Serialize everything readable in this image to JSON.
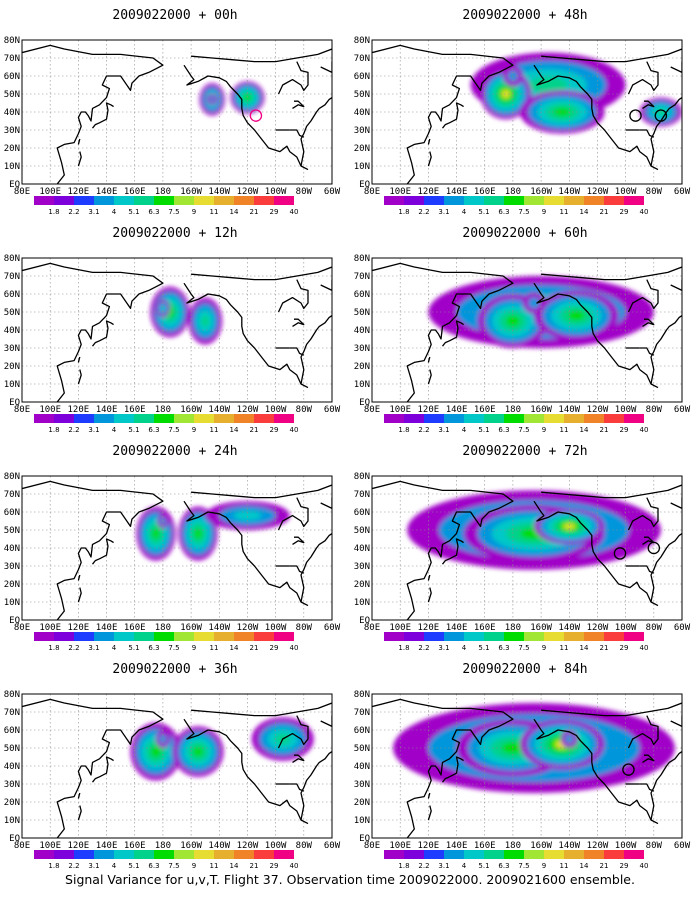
{
  "figure": {
    "footer": "Signal Variance for u,v,T. Flight 37. Observation time 2009022000. 2009021600 ensemble."
  },
  "axes": {
    "lon_labels": [
      "80E",
      "100E",
      "120E",
      "140E",
      "160E",
      "180",
      "160W",
      "140W",
      "120W",
      "100W",
      "80W",
      "60W"
    ],
    "lat_labels": [
      "80N",
      "70N",
      "60N",
      "50N",
      "40N",
      "30N",
      "20N",
      "10N",
      "EQ"
    ],
    "lon_range": [
      80,
      300
    ],
    "lat_range": [
      0,
      80
    ]
  },
  "colorbar": {
    "labels": [
      "1.8",
      "2.2",
      "3.1",
      "4",
      "5.1",
      "6.3",
      "7.5",
      "9",
      "11",
      "14",
      "21",
      "29",
      "40"
    ],
    "colors": [
      "#a000c8",
      "#7d00dc",
      "#1e3cff",
      "#0096dc",
      "#00c8c8",
      "#00d28c",
      "#00dc00",
      "#a0e632",
      "#e6dc32",
      "#e6af2d",
      "#f08228",
      "#fa3c3c",
      "#f00082"
    ]
  },
  "panels": [
    {
      "id": "p00",
      "title": "2009022000 + 00h",
      "col": 0,
      "row": 0,
      "blobs": [
        [
          215,
          47,
          9,
          9,
          3
        ],
        [
          240,
          48,
          12,
          9,
          4
        ],
        [
          215,
          47,
          4,
          3,
          1
        ]
      ],
      "circles": [
        [
          246,
          38,
          4,
          "#f00082"
        ]
      ]
    },
    {
      "id": "p12",
      "title": "2009022000 + 12h",
      "col": 0,
      "row": 1,
      "blobs": [
        [
          185,
          50,
          14,
          14,
          4
        ],
        [
          210,
          45,
          12,
          13,
          3
        ],
        [
          180,
          52,
          5,
          5,
          2
        ]
      ],
      "circles": []
    },
    {
      "id": "p24",
      "title": "2009022000 + 24h",
      "col": 0,
      "row": 2,
      "blobs": [
        [
          175,
          48,
          14,
          15,
          4
        ],
        [
          205,
          48,
          14,
          15,
          4
        ],
        [
          240,
          58,
          30,
          8,
          2
        ],
        [
          180,
          55,
          4,
          4,
          1
        ]
      ],
      "circles": []
    },
    {
      "id": "p36",
      "title": "2009022000 + 36h",
      "col": 0,
      "row": 3,
      "blobs": [
        [
          175,
          48,
          18,
          16,
          4
        ],
        [
          205,
          48,
          18,
          14,
          4
        ],
        [
          265,
          55,
          22,
          12,
          3
        ],
        [
          180,
          55,
          5,
          5,
          1
        ]
      ],
      "circles": []
    },
    {
      "id": "p48",
      "title": "2009022000 + 48h",
      "col": 1,
      "row": 0,
      "blobs": [
        [
          205,
          55,
          55,
          18,
          3
        ],
        [
          175,
          50,
          18,
          14,
          5
        ],
        [
          215,
          40,
          30,
          12,
          4
        ],
        [
          285,
          40,
          15,
          8,
          3
        ],
        [
          180,
          60,
          7,
          6,
          1
        ]
      ],
      "circles": [
        [
          267,
          38,
          4,
          "#000000"
        ],
        [
          285,
          38,
          4,
          "#000000"
        ]
      ]
    },
    {
      "id": "p60",
      "title": "2009022000 + 60h",
      "col": 1,
      "row": 1,
      "blobs": [
        [
          200,
          50,
          80,
          20,
          3
        ],
        [
          180,
          45,
          25,
          15,
          4
        ],
        [
          225,
          48,
          30,
          14,
          4
        ],
        [
          195,
          55,
          8,
          6,
          1
        ]
      ],
      "circles": []
    },
    {
      "id": "p72",
      "title": "2009022000 + 72h",
      "col": 1,
      "row": 2,
      "blobs": [
        [
          195,
          50,
          90,
          22,
          3
        ],
        [
          195,
          48,
          50,
          16,
          4
        ],
        [
          220,
          52,
          25,
          10,
          5
        ]
      ],
      "circles": [
        [
          256,
          37,
          4,
          "#000000"
        ],
        [
          280,
          40,
          4,
          "#000000"
        ]
      ]
    },
    {
      "id": "p84",
      "title": "2009022000 + 84h",
      "col": 1,
      "row": 3,
      "blobs": [
        [
          195,
          50,
          100,
          25,
          3
        ],
        [
          180,
          50,
          40,
          16,
          4
        ],
        [
          215,
          52,
          30,
          14,
          5
        ],
        [
          220,
          55,
          6,
          5,
          1
        ]
      ],
      "circles": [
        [
          262,
          38,
          4,
          "#000000"
        ]
      ]
    }
  ]
}
